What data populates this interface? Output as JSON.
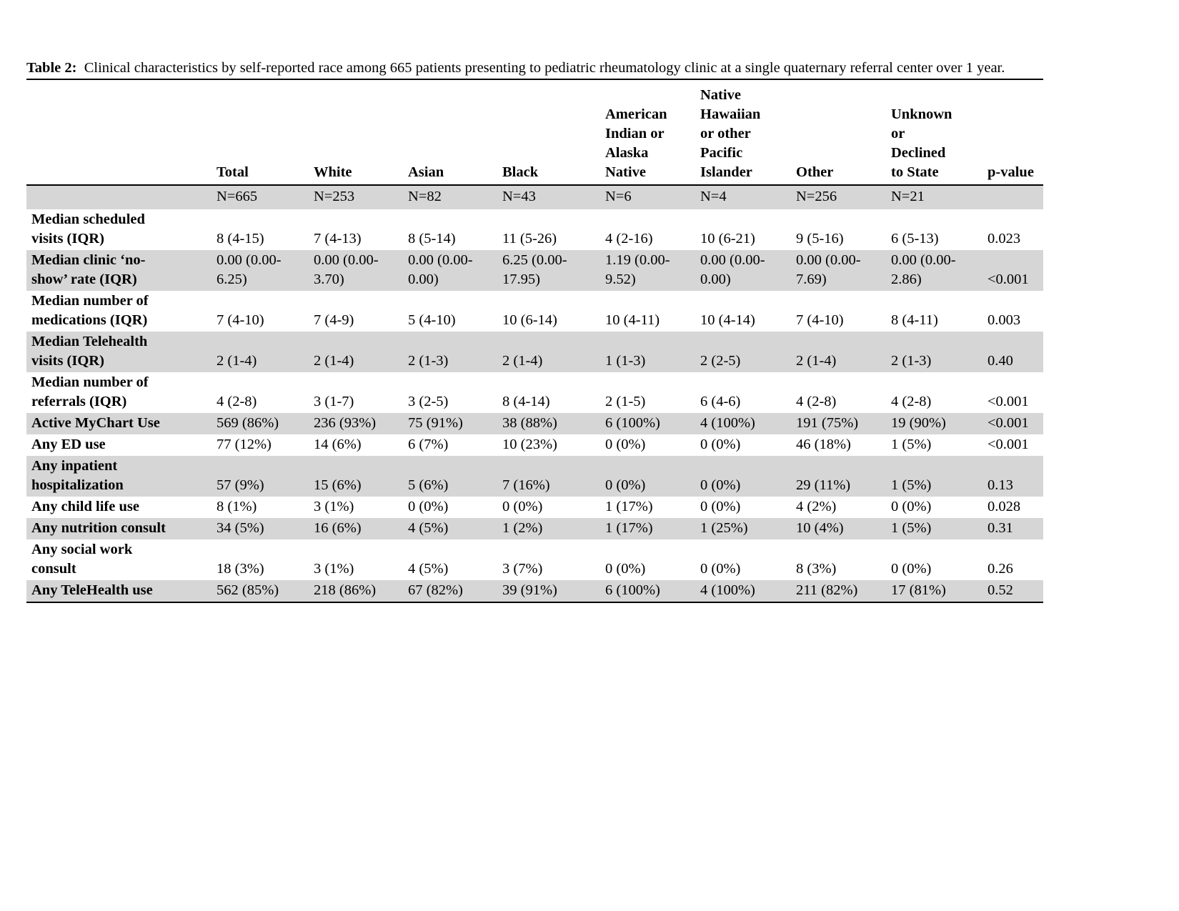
{
  "caption": {
    "label": "Table 2:",
    "text": "Clinical characteristics by self-reported race among 665 patients presenting to pediatric rheumatology clinic at a single quaternary referral center over 1 year."
  },
  "table": {
    "shaded_row_color": "#d6d6d6",
    "columns": [
      {
        "header": "",
        "n": ""
      },
      {
        "header": "Total",
        "n": "N=665"
      },
      {
        "header": "White",
        "n": "N=253"
      },
      {
        "header": "Asian",
        "n": "N=82"
      },
      {
        "header": "Black",
        "n": "N=43"
      },
      {
        "header": "American\nIndian or\nAlaska\nNative",
        "n": "N=6"
      },
      {
        "header": "Native\nHawaiian\nor other\nPacific\nIslander",
        "n": "N=4"
      },
      {
        "header": "Other",
        "n": "N=256"
      },
      {
        "header": "Unknown\nor\nDeclined\nto State",
        "n": "N=21"
      },
      {
        "header": "p-value",
        "n": ""
      }
    ],
    "rows": [
      {
        "label": "Median scheduled\nvisits (IQR)",
        "shaded": false,
        "values": [
          "8 (4-15)",
          "7 (4-13)",
          "8 (5-14)",
          "11 (5-26)",
          "4 (2-16)",
          "10 (6-21)",
          "9 (5-16)",
          "6 (5-13)",
          "0.023"
        ]
      },
      {
        "label": "Median clinic ‘no-\nshow’ rate (IQR)",
        "shaded": true,
        "values": [
          "0.00 (0.00-\n6.25)",
          "0.00 (0.00-\n3.70)",
          "0.00 (0.00-\n0.00)",
          "6.25 (0.00-\n17.95)",
          "1.19 (0.00-\n9.52)",
          "0.00 (0.00-\n0.00)",
          "0.00 (0.00-\n7.69)",
          "0.00 (0.00-\n2.86)",
          "<0.001"
        ]
      },
      {
        "label": "Median number of\nmedications (IQR)",
        "shaded": false,
        "values": [
          "7 (4-10)",
          "7 (4-9)",
          "5 (4-10)",
          "10 (6-14)",
          "10 (4-11)",
          "10 (4-14)",
          "7 (4-10)",
          "8 (4-11)",
          "0.003"
        ]
      },
      {
        "label": "Median Telehealth\nvisits (IQR)",
        "shaded": true,
        "values": [
          "2 (1-4)",
          "2 (1-4)",
          "2 (1-3)",
          "2 (1-4)",
          "1 (1-3)",
          "2 (2-5)",
          "2 (1-4)",
          "2 (1-3)",
          "0.40"
        ]
      },
      {
        "label": "Median number of\nreferrals (IQR)",
        "shaded": false,
        "values": [
          "4 (2-8)",
          "3 (1-7)",
          "3 (2-5)",
          "8 (4-14)",
          "2 (1-5)",
          "6 (4-6)",
          "4 (2-8)",
          "4 (2-8)",
          "<0.001"
        ]
      },
      {
        "label": "Active MyChart Use",
        "shaded": true,
        "values": [
          "569 (86%)",
          "236 (93%)",
          "75 (91%)",
          "38 (88%)",
          "6 (100%)",
          "4 (100%)",
          "191 (75%)",
          "19 (90%)",
          "<0.001"
        ]
      },
      {
        "label": "Any ED use",
        "shaded": false,
        "values": [
          "77 (12%)",
          "14 (6%)",
          "6 (7%)",
          "10 (23%)",
          "0 (0%)",
          "0 (0%)",
          "46 (18%)",
          "1 (5%)",
          "<0.001"
        ]
      },
      {
        "label": "Any inpatient\nhospitalization",
        "shaded": true,
        "values": [
          "57 (9%)",
          "15 (6%)",
          "5 (6%)",
          "7 (16%)",
          "0 (0%)",
          "0 (0%)",
          "29 (11%)",
          "1 (5%)",
          "0.13"
        ]
      },
      {
        "label": "Any child life use",
        "shaded": false,
        "values": [
          "8 (1%)",
          "3 (1%)",
          "0 (0%)",
          "0 (0%)",
          "1 (17%)",
          "0 (0%)",
          "4 (2%)",
          "0 (0%)",
          "0.028"
        ]
      },
      {
        "label": "Any nutrition consult",
        "shaded": true,
        "values": [
          "34 (5%)",
          "16 (6%)",
          "4 (5%)",
          "1 (2%)",
          "1 (17%)",
          "1 (25%)",
          "10 (4%)",
          "1 (5%)",
          "0.31"
        ]
      },
      {
        "label": "Any social work\nconsult",
        "shaded": false,
        "values": [
          "18 (3%)",
          "3 (1%)",
          "4 (5%)",
          "3 (7%)",
          "0 (0%)",
          "0 (0%)",
          "8 (3%)",
          "0 (0%)",
          "0.26"
        ]
      },
      {
        "label": "Any TeleHealth use",
        "shaded": true,
        "values": [
          "562 (85%)",
          "218 (86%)",
          "67 (82%)",
          "39 (91%)",
          "6 (100%)",
          "4 (100%)",
          "211 (82%)",
          "17 (81%)",
          "0.52"
        ]
      }
    ]
  }
}
